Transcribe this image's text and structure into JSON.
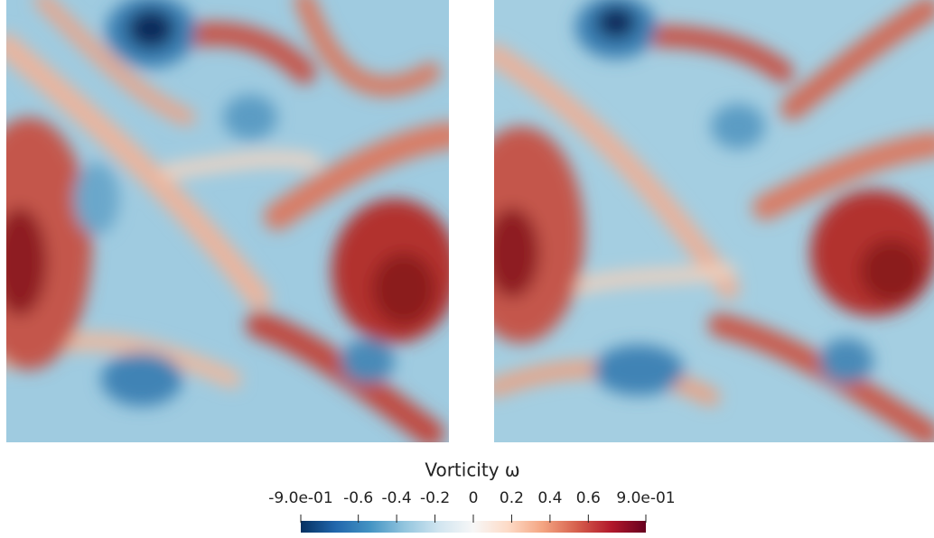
{
  "colorbar": {
    "title": "Vorticity ω",
    "lim": [
      -0.9,
      0.9
    ],
    "ticks": [
      {
        "value": -0.9,
        "label": "-9.0e-01"
      },
      -0.6,
      -0.4,
      -0.2,
      0,
      0.2,
      0.4,
      0.6,
      {
        "value": 0.9,
        "label": "9.0e-01"
      }
    ],
    "colormap": [
      "#053061",
      "#2166ac",
      "#4393c3",
      "#92c5de",
      "#d1e5f0",
      "#f7f7f7",
      "#fddbc7",
      "#f4a582",
      "#d6604d",
      "#b2182b",
      "#67001f"
    ]
  }
}
